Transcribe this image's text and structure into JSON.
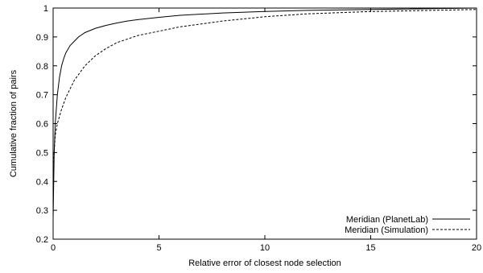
{
  "chart_data": {
    "type": "line",
    "title": "",
    "xlabel": "Relative error of closest node selection",
    "ylabel": "Cumulative fraction of pairs",
    "xlim": [
      0,
      20
    ],
    "ylim": [
      0.2,
      1
    ],
    "xticks": [
      0,
      5,
      10,
      15,
      20
    ],
    "xtick_labels": [
      "0",
      "5",
      "10",
      "15",
      "20"
    ],
    "yticks": [
      0.2,
      0.3,
      0.4,
      0.5,
      0.6,
      0.7,
      0.8,
      0.9,
      1
    ],
    "ytick_labels": [
      "0.2",
      "0.3",
      "0.4",
      "0.5",
      "0.6",
      "0.7",
      "0.8",
      "0.9",
      "1"
    ],
    "grid": false,
    "legend_position": "bottom-right",
    "series": [
      {
        "name": "Meridian (PlanetLab)",
        "line_style": "solid",
        "color": "#000000",
        "x": [
          0,
          0.05,
          0.1,
          0.2,
          0.3,
          0.4,
          0.5,
          0.6,
          0.8,
          1.0,
          1.2,
          1.5,
          2.0,
          2.5,
          3.0,
          3.5,
          4.0,
          5.0,
          6.0,
          8.0,
          10.0,
          12.0,
          15.0,
          20.0
        ],
        "y": [
          0.27,
          0.5,
          0.6,
          0.7,
          0.76,
          0.8,
          0.825,
          0.845,
          0.87,
          0.885,
          0.9,
          0.915,
          0.93,
          0.94,
          0.948,
          0.955,
          0.96,
          0.968,
          0.975,
          0.983,
          0.988,
          0.992,
          0.995,
          1.0
        ]
      },
      {
        "name": "Meridian (Simulation)",
        "line_style": "dashed",
        "color": "#000000",
        "x": [
          0,
          0.05,
          0.1,
          0.2,
          0.4,
          0.6,
          0.8,
          1.0,
          1.5,
          2.0,
          2.5,
          3.0,
          4.0,
          5.0,
          6.0,
          7.0,
          8.0,
          10.0,
          12.0,
          15.0,
          20.0
        ],
        "y": [
          0.45,
          0.5,
          0.56,
          0.6,
          0.65,
          0.69,
          0.72,
          0.75,
          0.8,
          0.835,
          0.86,
          0.88,
          0.905,
          0.92,
          0.935,
          0.945,
          0.955,
          0.97,
          0.98,
          0.988,
          0.995
        ]
      }
    ]
  }
}
